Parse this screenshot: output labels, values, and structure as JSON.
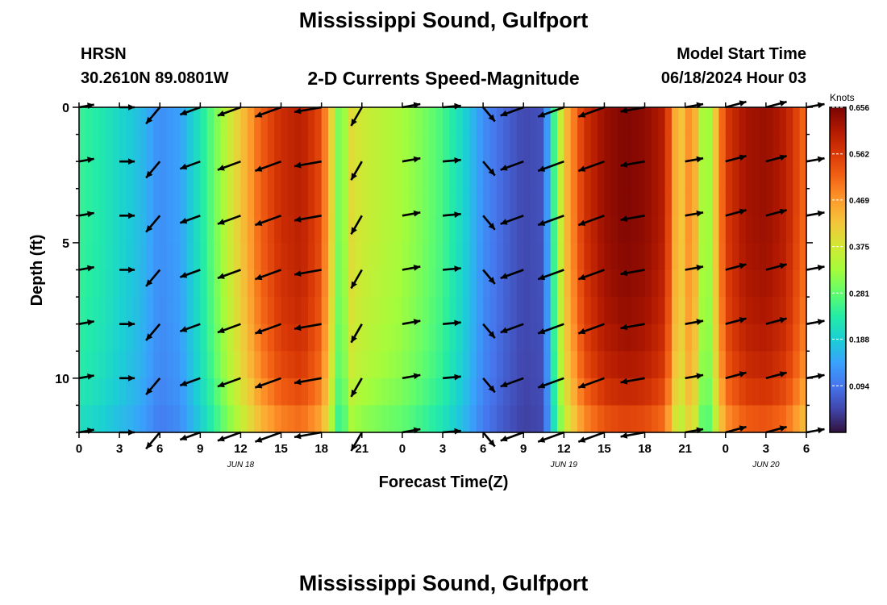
{
  "header": {
    "title": "Mississippi Sound, Gulfport",
    "station": "HRSN",
    "coords": "30.2610N  89.0801W",
    "subtitle": "2-D Currents Speed-Magnitude",
    "model_start_label": "Model Start Time",
    "model_start_value": "06/18/2024 Hour 03"
  },
  "footer": {
    "title": "Mississippi Sound, Gulfport"
  },
  "chart_data": {
    "type": "heatmap",
    "title": "2-D Currents Speed-Magnitude",
    "xlabel": "Forecast Time(Z)",
    "ylabel": "Depth (ft)",
    "xlim_hours": [
      0,
      54
    ],
    "ylim_ft": [
      12,
      0
    ],
    "x_ticks": [
      "0",
      "3",
      "6",
      "9",
      "12",
      "15",
      "18",
      "21",
      "0",
      "3",
      "6",
      "9",
      "12",
      "15",
      "18",
      "21",
      "0",
      "3",
      "6"
    ],
    "y_ticks": [
      {
        "value": 0,
        "label": "0"
      },
      {
        "value": 5,
        "label": "5"
      },
      {
        "value": 10,
        "label": "10"
      }
    ],
    "date_labels": [
      {
        "hour": 12,
        "label": "JUN 18"
      },
      {
        "hour": 36,
        "label": "JUN 19"
      },
      {
        "hour": 51,
        "label": "JUN 20"
      }
    ],
    "colorbar": {
      "unit": "Knots",
      "min": 0.0,
      "max": 0.656,
      "ticks": [
        "0.656",
        "0.562",
        "0.469",
        "0.375",
        "0.281",
        "0.188",
        "0.094"
      ],
      "colors": [
        "#30123b",
        "#4145ab",
        "#4675ed",
        "#39a2fc",
        "#1bcfd4",
        "#24eca6",
        "#61fc6c",
        "#a4fc3b",
        "#d1e834",
        "#f3c63a",
        "#fe9b2d",
        "#f36315",
        "#d93806",
        "#b11901",
        "#7a0402"
      ]
    },
    "speed_profile_hours": [
      0,
      1.5,
      3,
      4.5,
      6,
      7.5,
      9,
      10.5,
      12,
      13.5,
      15,
      16.5,
      18,
      19,
      19.5,
      20,
      21,
      22.5,
      24,
      25.5,
      27,
      28.5,
      30,
      31.5,
      33,
      34.5,
      35,
      36,
      37.5,
      39,
      40.5,
      42,
      43.5,
      44.5,
      45.5,
      46.5,
      48,
      49.5,
      51,
      52.5,
      54
    ],
    "speed_profile_knots": [
      0.25,
      0.23,
      0.2,
      0.17,
      0.12,
      0.14,
      0.22,
      0.32,
      0.42,
      0.52,
      0.58,
      0.6,
      0.54,
      0.35,
      0.25,
      0.4,
      0.37,
      0.35,
      0.33,
      0.3,
      0.26,
      0.2,
      0.12,
      0.08,
      0.05,
      0.06,
      0.2,
      0.42,
      0.57,
      0.63,
      0.65,
      0.64,
      0.6,
      0.4,
      0.5,
      0.28,
      0.56,
      0.62,
      0.63,
      0.6,
      0.5
    ],
    "depth_factor": {
      "depths_ft": [
        0,
        2,
        4,
        6,
        8,
        10,
        12
      ],
      "factor": [
        1.0,
        1.0,
        1.0,
        0.99,
        0.97,
        0.93,
        0.82
      ]
    },
    "vectors": {
      "hours": [
        0,
        3,
        6,
        9,
        12,
        15,
        18,
        21,
        24,
        27,
        30,
        33,
        36,
        39,
        42,
        45,
        48,
        51,
        54
      ],
      "depths_ft": [
        0,
        2,
        4,
        6,
        8,
        10,
        12
      ],
      "directions_deg": [
        10,
        0,
        230,
        200,
        200,
        200,
        190,
        240,
        10,
        5,
        310,
        200,
        200,
        200,
        190,
        10,
        15,
        15,
        10
      ],
      "length_units": "relative",
      "lengths": [
        0.5,
        0.5,
        0.7,
        0.7,
        0.8,
        0.9,
        0.9,
        0.7,
        0.6,
        0.6,
        0.6,
        0.8,
        0.9,
        0.9,
        0.8,
        0.6,
        0.7,
        0.7,
        0.6
      ]
    }
  }
}
